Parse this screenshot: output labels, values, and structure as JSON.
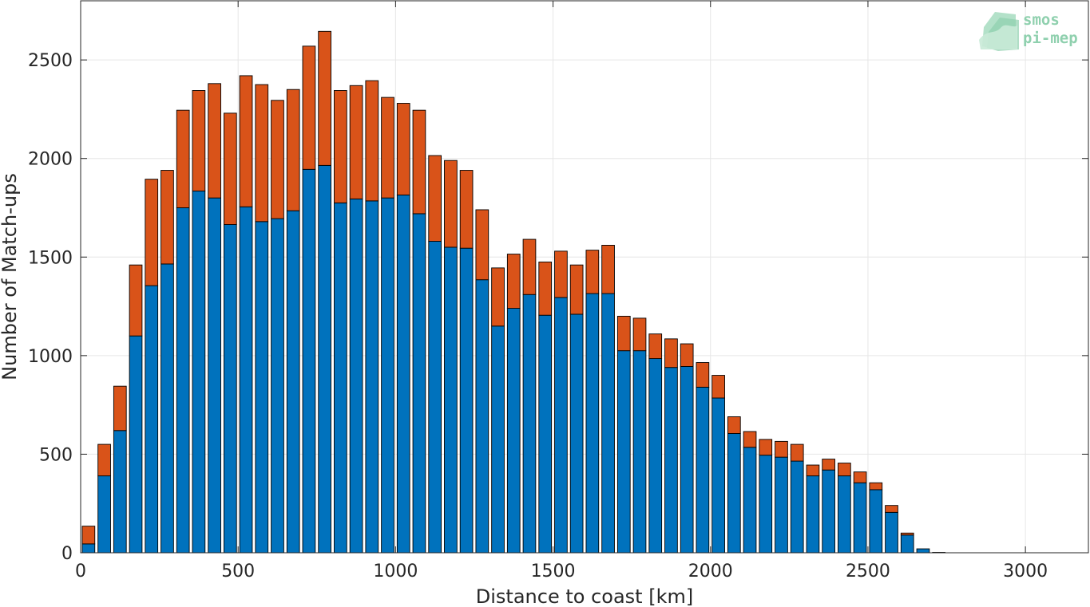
{
  "chart_data": {
    "type": "bar",
    "stacked": true,
    "title": "",
    "xlabel": "Distance to coast [km]",
    "ylabel": "Number of Match-ups",
    "xlim": [
      0,
      3200
    ],
    "ylim": [
      0,
      2800
    ],
    "xticks": [
      0,
      500,
      1000,
      1500,
      2000,
      2500,
      3000
    ],
    "yticks": [
      0,
      500,
      1000,
      1500,
      2000,
      2500
    ],
    "grid": true,
    "bin_width_km": 50,
    "x": [
      25,
      75,
      125,
      175,
      225,
      275,
      325,
      375,
      425,
      475,
      525,
      575,
      625,
      675,
      725,
      775,
      825,
      875,
      925,
      975,
      1025,
      1075,
      1125,
      1175,
      1225,
      1275,
      1325,
      1375,
      1425,
      1475,
      1525,
      1575,
      1625,
      1675,
      1725,
      1775,
      1825,
      1875,
      1925,
      1975,
      2025,
      2075,
      2125,
      2175,
      2225,
      2275,
      2325,
      2375,
      2425,
      2475,
      2525,
      2575,
      2625,
      2675,
      2725,
      2775,
      2825,
      2875,
      2925,
      2975,
      3025,
      3075,
      3125
    ],
    "series": [
      {
        "color": "#0072bd",
        "values": [
          45,
          390,
          620,
          1100,
          1355,
          1465,
          1750,
          1835,
          1800,
          1665,
          1755,
          1680,
          1695,
          1735,
          1945,
          1965,
          1775,
          1795,
          1785,
          1800,
          1815,
          1720,
          1580,
          1550,
          1545,
          1385,
          1150,
          1240,
          1310,
          1205,
          1295,
          1210,
          1315,
          1315,
          1025,
          1025,
          985,
          940,
          945,
          840,
          785,
          605,
          535,
          495,
          485,
          465,
          390,
          420,
          390,
          355,
          320,
          205,
          90,
          20,
          2,
          0,
          0,
          0,
          0,
          0,
          0,
          0,
          0
        ]
      },
      {
        "color": "#d95319",
        "values": [
          90,
          160,
          225,
          360,
          540,
          475,
          495,
          510,
          580,
          565,
          665,
          695,
          600,
          615,
          625,
          680,
          570,
          575,
          610,
          510,
          465,
          525,
          435,
          440,
          395,
          355,
          295,
          275,
          280,
          270,
          235,
          250,
          220,
          245,
          175,
          165,
          125,
          145,
          115,
          125,
          115,
          85,
          80,
          80,
          80,
          85,
          55,
          55,
          65,
          55,
          35,
          35,
          10,
          0,
          0,
          0,
          0,
          0,
          0,
          0,
          0,
          0,
          0
        ]
      }
    ],
    "watermark": {
      "line1": "smos",
      "line2": "pi-mep"
    }
  }
}
